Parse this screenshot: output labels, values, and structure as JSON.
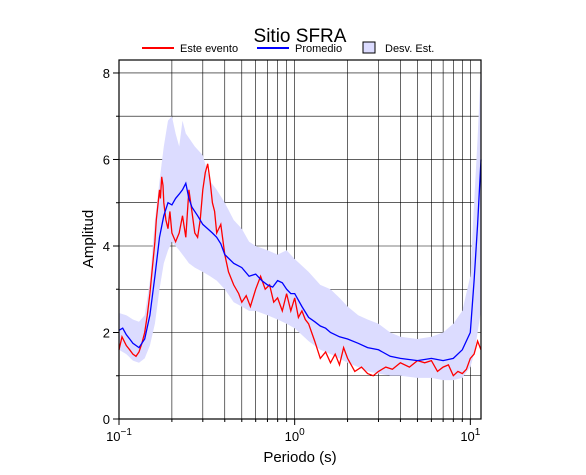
{
  "chart_data": {
    "type": "line",
    "title": "Sitio SFRA",
    "xlabel": "Periodo (s)",
    "ylabel": "Amplitud",
    "xscale": "log",
    "xlim": [
      0.1,
      11.5
    ],
    "ylim": [
      0,
      8.3
    ],
    "grid": true,
    "legend_position": "top",
    "x_ticks": [
      {
        "value": 0.1,
        "base": "10",
        "exp": "−1"
      },
      {
        "value": 1,
        "label": "10",
        "sup": "0"
      },
      {
        "value": 10,
        "base": "10",
        "exp": "1"
      }
    ],
    "y_ticks": [
      0,
      2,
      4,
      6,
      8
    ],
    "legend": [
      {
        "label": "Este evento",
        "kind": "line",
        "color": "#ff0000"
      },
      {
        "label": "Promedio",
        "kind": "line",
        "color": "#0000ff"
      },
      {
        "label": "Desv. Est.",
        "kind": "area",
        "color": "#dcdcff"
      }
    ],
    "series": [
      {
        "name": "Este evento",
        "color": "#ff0000",
        "x": [
          0.1,
          0.104,
          0.11,
          0.115,
          0.12,
          0.125,
          0.13,
          0.135,
          0.14,
          0.145,
          0.15,
          0.155,
          0.16,
          0.163,
          0.166,
          0.17,
          0.172,
          0.175,
          0.178,
          0.18,
          0.185,
          0.19,
          0.195,
          0.2,
          0.21,
          0.22,
          0.23,
          0.24,
          0.25,
          0.26,
          0.27,
          0.28,
          0.29,
          0.3,
          0.31,
          0.32,
          0.33,
          0.34,
          0.35,
          0.36,
          0.38,
          0.4,
          0.42,
          0.45,
          0.48,
          0.5,
          0.53,
          0.56,
          0.6,
          0.64,
          0.68,
          0.72,
          0.76,
          0.8,
          0.85,
          0.9,
          0.95,
          1.0,
          1.05,
          1.1,
          1.15,
          1.2,
          1.3,
          1.4,
          1.5,
          1.6,
          1.7,
          1.8,
          1.9,
          2.0,
          2.2,
          2.4,
          2.6,
          2.8,
          3.0,
          3.3,
          3.6,
          4.0,
          4.5,
          5.0,
          5.5,
          6.0,
          6.5,
          7.0,
          7.5,
          8.0,
          8.5,
          9.0,
          9.5,
          10.0,
          10.5,
          11.0,
          11.5
        ],
        "values": [
          1.6,
          1.9,
          1.7,
          1.6,
          1.5,
          1.45,
          1.55,
          1.75,
          2.0,
          2.4,
          2.9,
          3.5,
          4.1,
          4.6,
          4.9,
          5.3,
          5.1,
          5.6,
          5.4,
          5.0,
          4.6,
          4.4,
          4.8,
          4.3,
          4.1,
          4.3,
          4.7,
          4.2,
          5.3,
          4.8,
          4.3,
          4.2,
          4.6,
          5.3,
          5.7,
          5.9,
          5.5,
          5.0,
          4.8,
          4.3,
          4.5,
          3.8,
          3.4,
          3.1,
          2.9,
          2.7,
          2.85,
          2.6,
          3.0,
          3.3,
          3.0,
          3.1,
          2.7,
          2.8,
          2.5,
          2.9,
          2.5,
          2.8,
          2.35,
          2.5,
          2.3,
          2.2,
          1.8,
          1.4,
          1.55,
          1.3,
          1.5,
          1.25,
          1.65,
          1.4,
          1.1,
          1.2,
          1.05,
          1.0,
          1.1,
          1.2,
          1.15,
          1.3,
          1.2,
          1.35,
          1.3,
          1.35,
          1.1,
          1.2,
          1.25,
          1.0,
          1.1,
          1.05,
          1.15,
          1.4,
          1.5,
          1.8,
          1.6
        ]
      },
      {
        "name": "Promedio",
        "color": "#0000ff",
        "x": [
          0.1,
          0.105,
          0.11,
          0.115,
          0.12,
          0.13,
          0.14,
          0.15,
          0.16,
          0.17,
          0.18,
          0.19,
          0.2,
          0.21,
          0.22,
          0.23,
          0.24,
          0.25,
          0.26,
          0.28,
          0.3,
          0.32,
          0.34,
          0.36,
          0.38,
          0.4,
          0.45,
          0.5,
          0.55,
          0.6,
          0.65,
          0.7,
          0.75,
          0.8,
          0.85,
          0.9,
          0.95,
          1.0,
          1.1,
          1.2,
          1.3,
          1.4,
          1.5,
          1.6,
          1.8,
          2.0,
          2.3,
          2.6,
          3.0,
          3.5,
          4.0,
          5.0,
          6.0,
          7.0,
          8.0,
          9.0,
          10.0,
          10.5,
          11.0,
          11.5
        ],
        "values": [
          2.05,
          2.1,
          1.95,
          1.85,
          1.75,
          1.65,
          1.85,
          2.4,
          3.3,
          4.2,
          4.7,
          5.0,
          4.95,
          5.1,
          5.2,
          5.3,
          5.45,
          5.1,
          4.9,
          4.7,
          4.5,
          4.4,
          4.3,
          4.2,
          4.05,
          3.8,
          3.6,
          3.5,
          3.3,
          3.35,
          3.2,
          3.1,
          3.05,
          3.2,
          3.15,
          3.0,
          2.9,
          2.9,
          2.6,
          2.35,
          2.25,
          2.15,
          2.1,
          2.0,
          1.9,
          1.85,
          1.75,
          1.65,
          1.6,
          1.45,
          1.4,
          1.35,
          1.4,
          1.35,
          1.4,
          1.6,
          2.0,
          3.2,
          4.5,
          6.0
        ]
      }
    ],
    "band": {
      "name": "Desv. Est.",
      "color": "#dcdcff",
      "x": [
        0.1,
        0.11,
        0.12,
        0.13,
        0.14,
        0.15,
        0.16,
        0.17,
        0.18,
        0.19,
        0.2,
        0.21,
        0.22,
        0.23,
        0.24,
        0.25,
        0.27,
        0.3,
        0.33,
        0.36,
        0.4,
        0.45,
        0.5,
        0.55,
        0.6,
        0.7,
        0.8,
        0.9,
        1.0,
        1.2,
        1.4,
        1.6,
        1.8,
        2.0,
        2.3,
        2.6,
        3.0,
        3.5,
        4.0,
        5.0,
        6.0,
        7.0,
        8.0,
        9.0,
        10.0,
        10.5,
        11.0,
        11.5
      ],
      "upper": [
        2.45,
        2.4,
        2.3,
        2.25,
        2.4,
        3.2,
        4.6,
        5.5,
        6.3,
        6.9,
        7.0,
        6.6,
        6.3,
        6.9,
        6.6,
        6.5,
        6.3,
        6.1,
        5.5,
        5.3,
        5.0,
        4.6,
        4.4,
        4.1,
        4.0,
        3.9,
        3.8,
        3.9,
        3.7,
        3.4,
        3.1,
        3.0,
        2.8,
        2.6,
        2.4,
        2.3,
        2.2,
        2.0,
        1.9,
        1.85,
        1.9,
        2.0,
        2.2,
        2.5,
        3.3,
        5.0,
        6.5,
        8.2
      ],
      "lower": [
        1.6,
        1.5,
        1.35,
        1.3,
        1.4,
        1.7,
        2.2,
        3.0,
        3.6,
        3.9,
        4.1,
        4.0,
        3.9,
        3.8,
        3.7,
        3.6,
        3.5,
        3.4,
        3.3,
        3.2,
        3.0,
        2.7,
        2.6,
        2.5,
        2.5,
        2.4,
        2.3,
        2.2,
        2.1,
        1.8,
        1.6,
        1.5,
        1.4,
        1.3,
        1.2,
        1.1,
        1.05,
        1.0,
        1.0,
        0.95,
        0.95,
        0.9,
        0.9,
        0.95,
        1.2,
        1.5,
        2.0,
        2.5
      ]
    }
  }
}
